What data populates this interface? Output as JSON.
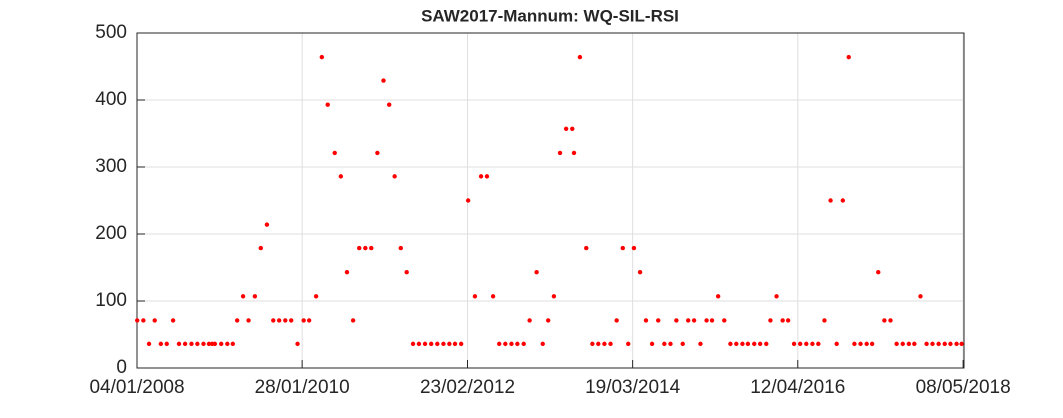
{
  "chart_data": {
    "type": "scatter",
    "title": "SAW2017-Mannum: WQ-SIL-RSI",
    "color": "#ff0000",
    "grid": true,
    "xlim": [
      "2008-01-04",
      "2018-05-12"
    ],
    "xticks": [
      {
        "value": "2008-01-04",
        "label": "04/01/2008"
      },
      {
        "value": "2010-01-28",
        "label": "28/01/2010"
      },
      {
        "value": "2012-02-23",
        "label": "23/02/2012"
      },
      {
        "value": "2014-03-19",
        "label": "19/03/2014"
      },
      {
        "value": "2016-04-12",
        "label": "12/04/2016"
      },
      {
        "value": "2018-05-08",
        "label": "08/05/2018"
      }
    ],
    "ylim": [
      0,
      500
    ],
    "yticks": [
      0,
      100,
      200,
      300,
      400,
      500
    ],
    "x": [
      "2008-01-05",
      "2008-02-02",
      "2008-02-28",
      "2008-03-25",
      "2008-04-22",
      "2008-05-19",
      "2008-06-17",
      "2008-07-14",
      "2008-08-11",
      "2008-09-09",
      "2008-10-06",
      "2008-11-03",
      "2008-11-28",
      "2008-12-13",
      "2008-12-25",
      "2009-01-23",
      "2009-02-20",
      "2009-03-17",
      "2009-04-06",
      "2009-05-03",
      "2009-05-28",
      "2009-06-26",
      "2009-07-23",
      "2009-08-20",
      "2009-09-18",
      "2009-10-15",
      "2009-11-12",
      "2009-12-09",
      "2010-01-07",
      "2010-02-04",
      "2010-03-01",
      "2010-04-02",
      "2010-04-28",
      "2010-05-25",
      "2010-06-26",
      "2010-07-24",
      "2010-08-21",
      "2010-09-18",
      "2010-10-16",
      "2010-11-13",
      "2010-12-10",
      "2011-01-07",
      "2011-02-04",
      "2011-03-02",
      "2011-03-27",
      "2011-04-24",
      "2011-05-21",
      "2011-06-19",
      "2011-07-16",
      "2011-08-13",
      "2011-09-10",
      "2011-10-08",
      "2011-11-05",
      "2011-12-02",
      "2011-12-28",
      "2012-01-25",
      "2012-02-26",
      "2012-03-28",
      "2012-04-25",
      "2012-05-22",
      "2012-06-19",
      "2012-07-17",
      "2012-08-14",
      "2012-09-11",
      "2012-10-08",
      "2012-11-06",
      "2012-12-03",
      "2013-01-04",
      "2013-02-01",
      "2013-02-26",
      "2013-03-24",
      "2013-04-21",
      "2013-05-19",
      "2013-06-16",
      "2013-06-24",
      "2013-07-21",
      "2013-08-19",
      "2013-09-16",
      "2013-10-13",
      "2013-11-10",
      "2013-12-08",
      "2014-01-05",
      "2014-02-02",
      "2014-02-27",
      "2014-03-25",
      "2014-04-22",
      "2014-05-19",
      "2014-06-16",
      "2014-07-14",
      "2014-08-11",
      "2014-09-08",
      "2014-10-05",
      "2014-11-03",
      "2014-11-28",
      "2014-12-25",
      "2015-01-23",
      "2015-02-20",
      "2015-03-17",
      "2015-04-14",
      "2015-05-12",
      "2015-06-09",
      "2015-07-06",
      "2015-08-03",
      "2015-08-28",
      "2015-09-26",
      "2015-10-23",
      "2015-11-20",
      "2015-12-09",
      "2016-01-06",
      "2016-02-03",
      "2016-02-28",
      "2016-03-26",
      "2016-04-23",
      "2016-05-21",
      "2016-06-18",
      "2016-07-15",
      "2016-08-12",
      "2016-09-09",
      "2016-10-07",
      "2016-11-04",
      "2016-12-01",
      "2016-12-27",
      "2017-01-24",
      "2017-02-21",
      "2017-03-18",
      "2017-04-15",
      "2017-05-13",
      "2017-06-10",
      "2017-07-08",
      "2017-08-05",
      "2017-09-02",
      "2017-09-27",
      "2017-10-25",
      "2017-11-22",
      "2017-12-19",
      "2018-01-16",
      "2018-02-13",
      "2018-03-11",
      "2018-04-08",
      "2018-05-01"
    ],
    "values": [
      71,
      71,
      36,
      71,
      36,
      36,
      71,
      36,
      36,
      36,
      36,
      36,
      36,
      36,
      36,
      36,
      36,
      36,
      71,
      107,
      71,
      107,
      179,
      214,
      71,
      71,
      71,
      71,
      36,
      71,
      71,
      107,
      464,
      393,
      321,
      286,
      143,
      71,
      179,
      179,
      179,
      321,
      429,
      393,
      286,
      179,
      143,
      36,
      36,
      36,
      36,
      36,
      36,
      36,
      36,
      36,
      250,
      107,
      286,
      286,
      107,
      36,
      36,
      36,
      36,
      36,
      71,
      143,
      36,
      71,
      107,
      321,
      357,
      357,
      321,
      464,
      179,
      36,
      36,
      36,
      36,
      71,
      179,
      36,
      179,
      143,
      71,
      36,
      71,
      36,
      36,
      71,
      36,
      71,
      71,
      36,
      71,
      71,
      107,
      71,
      36,
      36,
      36,
      36,
      36,
      36,
      36,
      71,
      107,
      71,
      71,
      36,
      36,
      36,
      36,
      36,
      71,
      250,
      36,
      250,
      464,
      36,
      36,
      36,
      36,
      143,
      71,
      71,
      36,
      36,
      36,
      36,
      107,
      36,
      36,
      36,
      36,
      36,
      36,
      36
    ]
  }
}
